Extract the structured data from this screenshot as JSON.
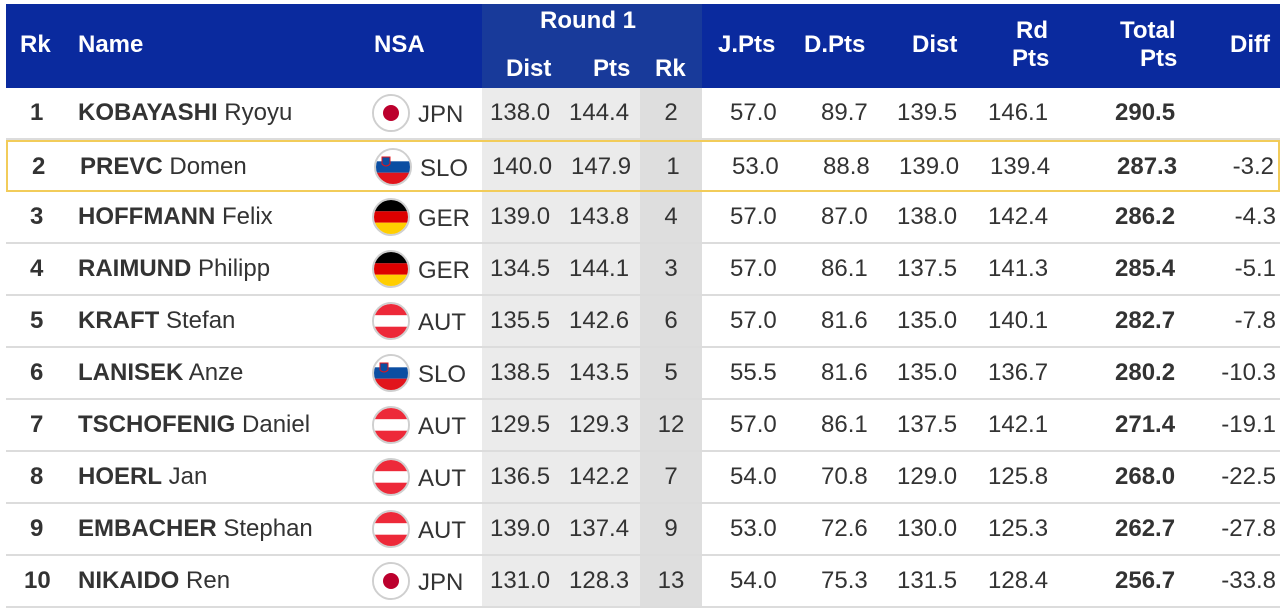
{
  "header": {
    "rk": "Rk",
    "name": "Name",
    "nsa": "NSA",
    "round1": "Round 1",
    "r1_dist": "Dist",
    "r1_pts": "Pts",
    "r1_rk": "Rk",
    "jpts": "J.Pts",
    "dpts": "D.Pts",
    "dist": "Dist",
    "rdpts_line1": "Rd",
    "rdpts_line2": "Pts",
    "total_line1": "Total",
    "total_line2": "Pts",
    "diff": "Diff"
  },
  "colors": {
    "header_bg": "#0a2a9e",
    "highlight_border": "#f2cc5a",
    "round1_bg": "#ebebeb",
    "round1_rk_bg": "#dedede"
  },
  "rows": [
    {
      "rank": "1",
      "last": "KOBAYASHI",
      "first": "Ryoyu",
      "nsa": "JPN",
      "flag": "jpn-flag-icon",
      "r1_dist": "138.0",
      "r1_pts": "144.4",
      "r1_rk": "2",
      "jpts": "57.0",
      "dpts": "89.7",
      "dist": "139.5",
      "rdpts": "146.1",
      "total": "290.5",
      "diff": ""
    },
    {
      "rank": "2",
      "last": "PREVC",
      "first": "Domen",
      "nsa": "SLO",
      "flag": "slo-flag-icon",
      "r1_dist": "140.0",
      "r1_pts": "147.9",
      "r1_rk": "1",
      "jpts": "53.0",
      "dpts": "88.8",
      "dist": "139.0",
      "rdpts": "139.4",
      "total": "287.3",
      "diff": "-3.2",
      "highlight": true
    },
    {
      "rank": "3",
      "last": "HOFFMANN",
      "first": "Felix",
      "nsa": "GER",
      "flag": "ger-flag-icon",
      "r1_dist": "139.0",
      "r1_pts": "143.8",
      "r1_rk": "4",
      "jpts": "57.0",
      "dpts": "87.0",
      "dist": "138.0",
      "rdpts": "142.4",
      "total": "286.2",
      "diff": "-4.3"
    },
    {
      "rank": "4",
      "last": "RAIMUND",
      "first": "Philipp",
      "nsa": "GER",
      "flag": "ger-flag-icon",
      "r1_dist": "134.5",
      "r1_pts": "144.1",
      "r1_rk": "3",
      "jpts": "57.0",
      "dpts": "86.1",
      "dist": "137.5",
      "rdpts": "141.3",
      "total": "285.4",
      "diff": "-5.1"
    },
    {
      "rank": "5",
      "last": "KRAFT",
      "first": "Stefan",
      "nsa": "AUT",
      "flag": "aut-flag-icon",
      "r1_dist": "135.5",
      "r1_pts": "142.6",
      "r1_rk": "6",
      "jpts": "57.0",
      "dpts": "81.6",
      "dist": "135.0",
      "rdpts": "140.1",
      "total": "282.7",
      "diff": "-7.8"
    },
    {
      "rank": "6",
      "last": "LANISEK",
      "first": "Anze",
      "nsa": "SLO",
      "flag": "slo-flag-icon",
      "r1_dist": "138.5",
      "r1_pts": "143.5",
      "r1_rk": "5",
      "jpts": "55.5",
      "dpts": "81.6",
      "dist": "135.0",
      "rdpts": "136.7",
      "total": "280.2",
      "diff": "-10.3"
    },
    {
      "rank": "7",
      "last": "TSCHOFENIG",
      "first": "Daniel",
      "nsa": "AUT",
      "flag": "aut-flag-icon",
      "r1_dist": "129.5",
      "r1_pts": "129.3",
      "r1_rk": "12",
      "jpts": "57.0",
      "dpts": "86.1",
      "dist": "137.5",
      "rdpts": "142.1",
      "total": "271.4",
      "diff": "-19.1"
    },
    {
      "rank": "8",
      "last": "HOERL",
      "first": "Jan",
      "nsa": "AUT",
      "flag": "aut-flag-icon",
      "r1_dist": "136.5",
      "r1_pts": "142.2",
      "r1_rk": "7",
      "jpts": "54.0",
      "dpts": "70.8",
      "dist": "129.0",
      "rdpts": "125.8",
      "total": "268.0",
      "diff": "-22.5"
    },
    {
      "rank": "9",
      "last": "EMBACHER",
      "first": "Stephan",
      "nsa": "AUT",
      "flag": "aut-flag-icon",
      "r1_dist": "139.0",
      "r1_pts": "137.4",
      "r1_rk": "9",
      "jpts": "53.0",
      "dpts": "72.6",
      "dist": "130.0",
      "rdpts": "125.3",
      "total": "262.7",
      "diff": "-27.8"
    },
    {
      "rank": "10",
      "last": "NIKAIDO",
      "first": "Ren",
      "nsa": "JPN",
      "flag": "jpn-flag-icon",
      "r1_dist": "131.0",
      "r1_pts": "128.3",
      "r1_rk": "13",
      "jpts": "54.0",
      "dpts": "75.3",
      "dist": "131.5",
      "rdpts": "128.4",
      "total": "256.7",
      "diff": "-33.8"
    }
  ]
}
